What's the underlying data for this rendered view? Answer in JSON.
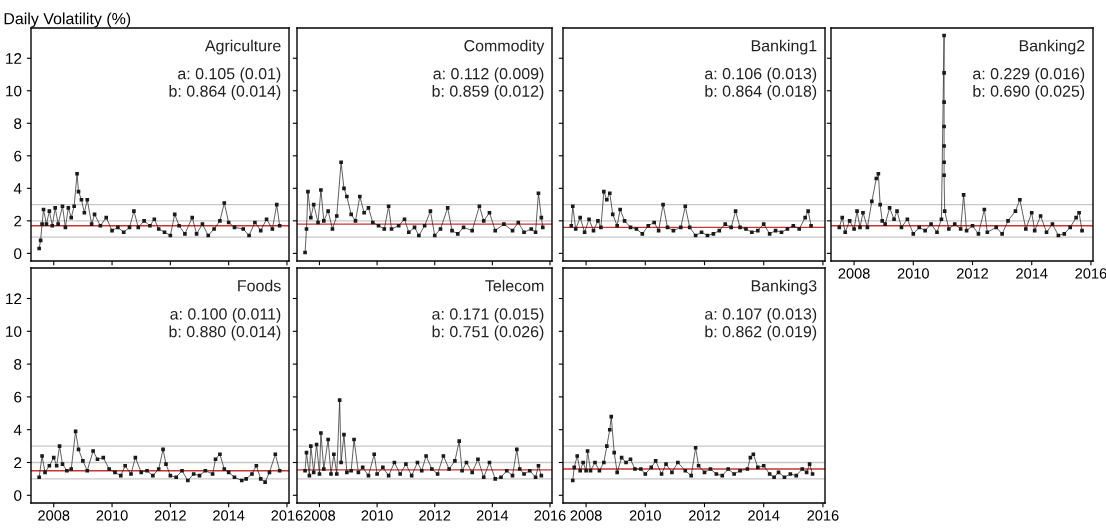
{
  "chart_data": [
    {
      "type": "line",
      "title": "Agriculture",
      "ylabel": "Daily Volatility (%)",
      "annotations": [
        "a: 0.105 (0.01)",
        "b: 0.864 (0.014)"
      ],
      "xlim": [
        2007.22,
        2016.07
      ],
      "xticks": [
        2008,
        2010,
        2012,
        2014,
        2016
      ],
      "ylim": [
        -0.47,
        13.86
      ],
      "yticks": [
        0,
        2,
        4,
        6,
        8,
        10,
        12
      ],
      "tick_labels": "y",
      "grid": false,
      "marker": "square",
      "line_style": "solid",
      "ref_lines": [
        {
          "axis": "y",
          "value": 1,
          "color": "#c8c8c8"
        },
        {
          "axis": "y",
          "value": 2,
          "color": "#c8c8c8"
        },
        {
          "axis": "y",
          "value": 3,
          "color": "#c8c8c8"
        },
        {
          "axis": "y",
          "value": 1.7,
          "color": "#cc3333"
        }
      ],
      "series": [
        {
          "color": "#1a1a1a",
          "x": [
            2007.5,
            2007.55,
            2007.6,
            2007.65,
            2007.75,
            2007.85,
            2007.95,
            2008.05,
            2008.15,
            2008.3,
            2008.4,
            2008.5,
            2008.6,
            2008.7,
            2008.8,
            2008.85,
            2008.95,
            2009.05,
            2009.15,
            2009.3,
            2009.4,
            2009.6,
            2009.8,
            2010.0,
            2010.2,
            2010.4,
            2010.6,
            2010.75,
            2010.9,
            2011.1,
            2011.3,
            2011.45,
            2011.6,
            2011.8,
            2012.0,
            2012.15,
            2012.3,
            2012.5,
            2012.75,
            2012.9,
            2013.1,
            2013.3,
            2013.5,
            2013.7,
            2013.85,
            2014.0,
            2014.2,
            2014.5,
            2014.7,
            2014.9,
            2015.1,
            2015.3,
            2015.5,
            2015.65,
            2015.75
          ],
          "values": [
            0.3,
            0.8,
            1.8,
            2.7,
            1.8,
            2.6,
            1.7,
            2.8,
            1.8,
            2.9,
            1.6,
            2.8,
            2.2,
            2.9,
            4.9,
            3.8,
            3.3,
            2.5,
            3.3,
            1.8,
            2.4,
            1.7,
            2.2,
            1.4,
            1.6,
            1.3,
            1.6,
            2.6,
            1.6,
            2.0,
            1.7,
            2.1,
            1.5,
            1.3,
            1.1,
            2.4,
            1.7,
            1.2,
            2.2,
            1.2,
            1.8,
            1.1,
            1.5,
            2.0,
            3.1,
            1.9,
            1.6,
            1.5,
            1.1,
            1.9,
            1.4,
            2.1,
            1.5,
            3.0,
            1.7
          ]
        }
      ]
    },
    {
      "type": "line",
      "title": "Commodity",
      "annotations": [
        "a: 0.112 (0.009)",
        "b: 0.859 (0.012)"
      ],
      "xlim": [
        2007.22,
        2016.07
      ],
      "xticks": [
        2008,
        2010,
        2012,
        2014,
        2016
      ],
      "ylim": [
        -0.47,
        13.86
      ],
      "yticks": [
        0,
        2,
        4,
        6,
        8,
        10,
        12
      ],
      "tick_labels": false,
      "grid": false,
      "marker": "square",
      "line_style": "solid",
      "ref_lines": [
        {
          "axis": "y",
          "value": 1,
          "color": "#c8c8c8"
        },
        {
          "axis": "y",
          "value": 2,
          "color": "#c8c8c8"
        },
        {
          "axis": "y",
          "value": 3,
          "color": "#c8c8c8"
        },
        {
          "axis": "y",
          "value": 1.8,
          "color": "#cc3333"
        }
      ],
      "series": [
        {
          "color": "#1a1a1a",
          "x": [
            2007.5,
            2007.55,
            2007.6,
            2007.7,
            2007.8,
            2007.95,
            2008.05,
            2008.15,
            2008.3,
            2008.45,
            2008.6,
            2008.75,
            2008.85,
            2008.95,
            2009.1,
            2009.25,
            2009.4,
            2009.55,
            2009.7,
            2009.85,
            2010.05,
            2010.25,
            2010.4,
            2010.5,
            2010.75,
            2010.95,
            2011.1,
            2011.3,
            2011.45,
            2011.65,
            2011.85,
            2012.0,
            2012.2,
            2012.45,
            2012.6,
            2012.8,
            2013.0,
            2013.3,
            2013.55,
            2013.7,
            2013.9,
            2014.1,
            2014.4,
            2014.7,
            2014.9,
            2015.1,
            2015.35,
            2015.5,
            2015.6,
            2015.7,
            2015.75
          ],
          "values": [
            0.05,
            1.5,
            3.8,
            2.2,
            3.0,
            1.9,
            3.9,
            2.0,
            2.6,
            1.5,
            2.3,
            5.6,
            4.0,
            3.5,
            2.4,
            2.0,
            3.5,
            2.5,
            2.8,
            1.9,
            1.7,
            1.5,
            2.9,
            1.5,
            1.7,
            2.1,
            1.3,
            1.6,
            1.1,
            1.7,
            2.6,
            1.1,
            1.5,
            2.8,
            1.4,
            1.2,
            1.6,
            1.4,
            2.9,
            2.0,
            2.5,
            1.4,
            1.8,
            1.4,
            1.9,
            1.3,
            1.5,
            1.3,
            3.7,
            2.2,
            1.6
          ]
        }
      ]
    },
    {
      "type": "line",
      "title": "Banking1",
      "annotations": [
        "a: 0.106 (0.013)",
        "b: 0.864 (0.018)"
      ],
      "xlim": [
        2007.22,
        2016.07
      ],
      "xticks": [
        2008,
        2010,
        2012,
        2014,
        2016
      ],
      "ylim": [
        -0.47,
        13.86
      ],
      "yticks": [
        0,
        2,
        4,
        6,
        8,
        10,
        12
      ],
      "tick_labels": false,
      "grid": false,
      "marker": "square",
      "line_style": "solid",
      "ref_lines": [
        {
          "axis": "y",
          "value": 1,
          "color": "#c8c8c8"
        },
        {
          "axis": "y",
          "value": 2,
          "color": "#c8c8c8"
        },
        {
          "axis": "y",
          "value": 3,
          "color": "#c8c8c8"
        },
        {
          "axis": "y",
          "value": 1.6,
          "color": "#cc3333"
        }
      ],
      "series": [
        {
          "color": "#1a1a1a",
          "x": [
            2007.5,
            2007.55,
            2007.65,
            2007.8,
            2007.95,
            2008.1,
            2008.25,
            2008.4,
            2008.5,
            2008.6,
            2008.7,
            2008.8,
            2008.9,
            2009.05,
            2009.15,
            2009.3,
            2009.5,
            2009.7,
            2009.9,
            2010.1,
            2010.3,
            2010.45,
            2010.6,
            2010.75,
            2010.95,
            2011.2,
            2011.35,
            2011.5,
            2011.7,
            2011.9,
            2012.1,
            2012.3,
            2012.5,
            2012.7,
            2012.9,
            2013.05,
            2013.2,
            2013.4,
            2013.6,
            2013.8,
            2014.0,
            2014.2,
            2014.4,
            2014.6,
            2014.8,
            2015.0,
            2015.2,
            2015.4,
            2015.5,
            2015.6
          ],
          "values": [
            1.7,
            2.9,
            1.5,
            2.2,
            1.3,
            2.1,
            1.4,
            2.0,
            1.6,
            3.8,
            3.3,
            3.7,
            2.4,
            1.7,
            2.7,
            2.0,
            1.6,
            1.5,
            1.2,
            1.7,
            1.9,
            1.4,
            3.0,
            1.6,
            1.4,
            1.6,
            2.9,
            1.6,
            1.1,
            1.3,
            1.1,
            1.2,
            1.4,
            1.8,
            1.6,
            2.6,
            1.6,
            1.5,
            1.3,
            1.4,
            1.8,
            1.2,
            1.4,
            1.3,
            1.5,
            1.7,
            1.5,
            2.2,
            2.6,
            1.7
          ]
        }
      ]
    },
    {
      "type": "line",
      "title": "Banking2",
      "annotations": [
        "a: 0.229 (0.016)",
        "b: 0.690 (0.025)"
      ],
      "xlim": [
        2007.22,
        2016.07
      ],
      "xticks": [
        2008,
        2010,
        2012,
        2014,
        2016
      ],
      "ylim": [
        -0.47,
        13.86
      ],
      "yticks": [
        0,
        2,
        4,
        6,
        8,
        10,
        12
      ],
      "tick_labels": "x",
      "grid": false,
      "marker": "square",
      "line_style": "solid",
      "ref_lines": [
        {
          "axis": "y",
          "value": 1,
          "color": "#c8c8c8"
        },
        {
          "axis": "y",
          "value": 2,
          "color": "#c8c8c8"
        },
        {
          "axis": "y",
          "value": 3,
          "color": "#c8c8c8"
        },
        {
          "axis": "y",
          "value": 1.7,
          "color": "#cc3333"
        }
      ],
      "series": [
        {
          "color": "#1a1a1a",
          "x": [
            2007.5,
            2007.6,
            2007.7,
            2007.85,
            2008.0,
            2008.1,
            2008.2,
            2008.3,
            2008.45,
            2008.6,
            2008.75,
            2008.82,
            2008.88,
            2008.95,
            2009.05,
            2009.2,
            2009.35,
            2009.45,
            2009.6,
            2009.8,
            2010.0,
            2010.2,
            2010.4,
            2010.6,
            2010.8,
            2010.95,
            2011.04,
            2011.04,
            2011.04,
            2011.04,
            2011.04,
            2011.04,
            2011.04,
            2011.06,
            2011.2,
            2011.4,
            2011.6,
            2011.7,
            2011.8,
            2012.0,
            2012.2,
            2012.4,
            2012.5,
            2012.8,
            2013.0,
            2013.2,
            2013.45,
            2013.6,
            2013.8,
            2014.0,
            2014.1,
            2014.3,
            2014.5,
            2014.7,
            2014.9,
            2015.1,
            2015.3,
            2015.5,
            2015.6,
            2015.7
          ],
          "values": [
            1.6,
            2.2,
            1.3,
            2.0,
            1.5,
            2.6,
            1.6,
            2.5,
            1.6,
            3.2,
            4.6,
            4.9,
            3.0,
            2.0,
            1.8,
            2.8,
            2.1,
            2.6,
            1.6,
            2.1,
            1.2,
            1.6,
            1.4,
            1.8,
            1.3,
            2.1,
            13.4,
            11.1,
            9.3,
            7.8,
            6.6,
            5.6,
            4.8,
            2.6,
            1.5,
            1.8,
            1.5,
            3.6,
            1.4,
            1.7,
            1.2,
            2.7,
            1.3,
            1.6,
            1.2,
            2.0,
            2.6,
            3.3,
            1.5,
            2.5,
            1.4,
            2.3,
            1.3,
            1.8,
            1.1,
            1.2,
            1.6,
            2.2,
            2.5,
            1.4
          ]
        }
      ]
    },
    {
      "type": "line",
      "title": "Foods",
      "annotations": [
        "a: 0.100 (0.011)",
        "b: 0.880 (0.014)"
      ],
      "xlim": [
        2007.22,
        2016.07
      ],
      "xticks": [
        2008,
        2010,
        2012,
        2014,
        2016
      ],
      "ylim": [
        -0.47,
        13.86
      ],
      "yticks": [
        0,
        2,
        4,
        6,
        8,
        10,
        12
      ],
      "grid": false,
      "marker": "square",
      "line_style": "solid",
      "ref_lines": [
        {
          "axis": "y",
          "value": 1,
          "color": "#c8c8c8"
        },
        {
          "axis": "y",
          "value": 2,
          "color": "#c8c8c8"
        },
        {
          "axis": "y",
          "value": 3,
          "color": "#c8c8c8"
        },
        {
          "axis": "y",
          "value": 1.5,
          "color": "#cc3333"
        }
      ],
      "series": [
        {
          "color": "#1a1a1a",
          "x": [
            2007.5,
            2007.6,
            2007.7,
            2007.85,
            2008.0,
            2008.1,
            2008.2,
            2008.3,
            2008.45,
            2008.6,
            2008.75,
            2008.85,
            2009.0,
            2009.15,
            2009.35,
            2009.5,
            2009.7,
            2009.9,
            2010.1,
            2010.3,
            2010.45,
            2010.65,
            2010.8,
            2011.0,
            2011.2,
            2011.4,
            2011.6,
            2011.75,
            2011.85,
            2012.0,
            2012.2,
            2012.4,
            2012.6,
            2012.8,
            2013.0,
            2013.2,
            2013.45,
            2013.55,
            2013.7,
            2013.85,
            2014.0,
            2014.2,
            2014.45,
            2014.6,
            2014.8,
            2014.95,
            2015.1,
            2015.25,
            2015.4,
            2015.6,
            2015.75
          ],
          "values": [
            1.1,
            2.4,
            1.4,
            1.8,
            2.3,
            1.8,
            3.0,
            1.9,
            1.5,
            1.6,
            3.9,
            2.8,
            2.1,
            1.5,
            2.7,
            2.2,
            2.3,
            1.6,
            1.4,
            1.2,
            1.8,
            1.3,
            2.3,
            1.4,
            1.5,
            1.2,
            1.6,
            2.8,
            1.9,
            1.2,
            1.1,
            1.5,
            0.9,
            1.3,
            1.2,
            1.5,
            1.3,
            2.2,
            2.5,
            1.6,
            1.4,
            1.1,
            0.9,
            1.0,
            1.3,
            1.8,
            1.0,
            0.8,
            1.4,
            2.5,
            1.5
          ]
        }
      ]
    },
    {
      "type": "line",
      "title": "Telecom",
      "annotations": [
        "a: 0.171 (0.015)",
        "b: 0.751 (0.026)"
      ],
      "xlim": [
        2007.22,
        2016.07
      ],
      "xticks": [
        2008,
        2010,
        2012,
        2014,
        2016
      ],
      "ylim": [
        -0.47,
        13.86
      ],
      "yticks": [
        0,
        2,
        4,
        6,
        8,
        10,
        12
      ],
      "tick_labels": "x",
      "grid": false,
      "marker": "square",
      "line_style": "solid",
      "ref_lines": [
        {
          "axis": "y",
          "value": 1,
          "color": "#c8c8c8"
        },
        {
          "axis": "y",
          "value": 2,
          "color": "#c8c8c8"
        },
        {
          "axis": "y",
          "value": 3,
          "color": "#c8c8c8"
        },
        {
          "axis": "y",
          "value": 1.55,
          "color": "#cc3333"
        }
      ],
      "series": [
        {
          "color": "#1a1a1a",
          "x": [
            2007.5,
            2007.55,
            2007.65,
            2007.7,
            2007.8,
            2007.9,
            2008.0,
            2008.05,
            2008.15,
            2008.3,
            2008.4,
            2008.5,
            2008.6,
            2008.7,
            2008.75,
            2008.85,
            2008.95,
            2009.1,
            2009.2,
            2009.35,
            2009.5,
            2009.7,
            2009.9,
            2010.0,
            2010.2,
            2010.4,
            2010.6,
            2010.8,
            2011.0,
            2011.2,
            2011.4,
            2011.55,
            2011.7,
            2011.9,
            2012.1,
            2012.3,
            2012.5,
            2012.7,
            2012.85,
            2012.95,
            2013.1,
            2013.3,
            2013.5,
            2013.7,
            2013.9,
            2014.1,
            2014.3,
            2014.5,
            2014.7,
            2014.85,
            2014.95,
            2015.1,
            2015.3,
            2015.5,
            2015.6,
            2015.7
          ],
          "values": [
            1.5,
            2.6,
            1.2,
            3.0,
            1.4,
            3.1,
            1.3,
            3.8,
            1.6,
            3.4,
            1.3,
            2.5,
            1.3,
            5.8,
            2.0,
            3.7,
            1.4,
            1.5,
            3.4,
            1.4,
            1.7,
            1.2,
            2.5,
            1.3,
            1.7,
            1.2,
            2.0,
            1.3,
            1.9,
            1.2,
            2.0,
            1.5,
            2.4,
            1.6,
            1.3,
            2.4,
            1.6,
            2.1,
            3.3,
            1.5,
            2.0,
            1.4,
            2.2,
            1.1,
            2.0,
            1.0,
            1.1,
            1.5,
            1.2,
            2.8,
            1.6,
            1.3,
            1.5,
            1.1,
            1.8,
            1.2
          ]
        }
      ]
    },
    {
      "type": "line",
      "title": "Banking3",
      "annotations": [
        "a: 0.107 (0.013)",
        "b: 0.862 (0.019)"
      ],
      "xlim": [
        2007.22,
        2016.07
      ],
      "xticks": [
        2008,
        2010,
        2012,
        2014,
        2016
      ],
      "ylim": [
        -0.47,
        13.86
      ],
      "yticks": [
        0,
        2,
        4,
        6,
        8,
        10,
        12
      ],
      "tick_labels": "x",
      "grid": false,
      "marker": "square",
      "line_style": "solid",
      "ref_lines": [
        {
          "axis": "y",
          "value": 1,
          "color": "#c8c8c8"
        },
        {
          "axis": "y",
          "value": 2,
          "color": "#c8c8c8"
        },
        {
          "axis": "y",
          "value": 3,
          "color": "#c8c8c8"
        },
        {
          "axis": "y",
          "value": 1.6,
          "color": "#cc3333"
        }
      ],
      "series": [
        {
          "color": "#1a1a1a",
          "x": [
            2007.55,
            2007.6,
            2007.7,
            2007.8,
            2007.9,
            2008.0,
            2008.05,
            2008.15,
            2008.3,
            2008.45,
            2008.6,
            2008.7,
            2008.8,
            2008.85,
            2008.95,
            2009.05,
            2009.2,
            2009.35,
            2009.5,
            2009.65,
            2009.85,
            2010.0,
            2010.2,
            2010.35,
            2010.55,
            2010.7,
            2010.9,
            2011.1,
            2011.35,
            2011.55,
            2011.7,
            2011.8,
            2012.0,
            2012.2,
            2012.4,
            2012.6,
            2012.8,
            2013.0,
            2013.2,
            2013.45,
            2013.55,
            2013.65,
            2013.8,
            2014.0,
            2014.2,
            2014.35,
            2014.5,
            2014.7,
            2014.9,
            2015.1,
            2015.3,
            2015.45,
            2015.55,
            2015.65
          ],
          "values": [
            0.9,
            1.7,
            2.4,
            1.5,
            2.0,
            1.5,
            2.7,
            1.5,
            2.0,
            1.5,
            2.0,
            3.0,
            4.0,
            4.8,
            2.6,
            1.4,
            2.3,
            2.0,
            2.2,
            1.6,
            1.6,
            1.3,
            1.7,
            2.1,
            1.3,
            1.9,
            1.4,
            2.0,
            1.5,
            1.2,
            2.9,
            1.8,
            1.4,
            1.6,
            1.3,
            1.2,
            1.6,
            1.3,
            1.5,
            1.6,
            2.3,
            2.5,
            1.7,
            1.8,
            1.3,
            1.1,
            1.4,
            1.1,
            1.3,
            1.2,
            1.6,
            1.4,
            1.9,
            1.3
          ]
        }
      ]
    }
  ]
}
